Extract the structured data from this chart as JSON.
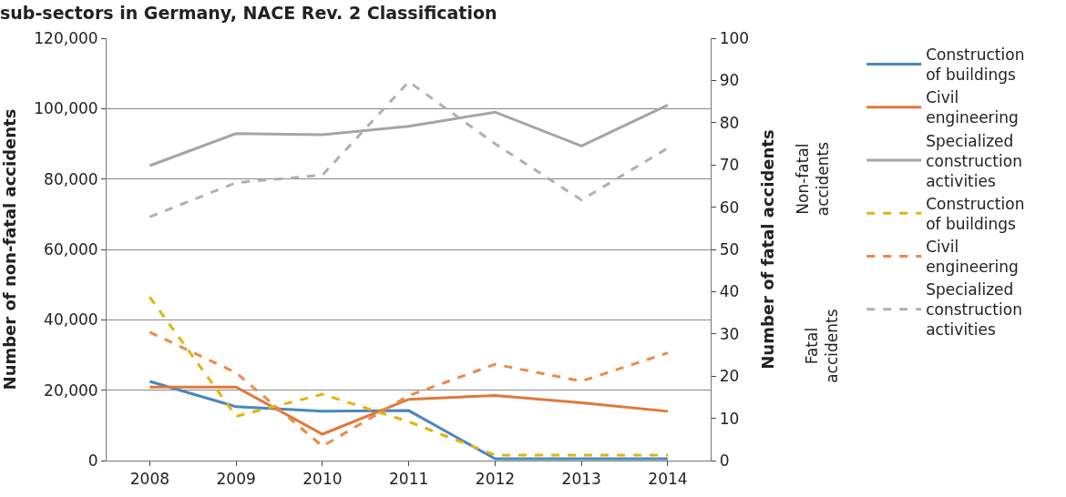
{
  "chart_data": {
    "type": "line",
    "title": "sub-sectors in Germany, NACE Rev. 2 Classification",
    "ylabel": "Number of non-fatal accidents",
    "y2label": "Number of fatal accidents",
    "annotations": [
      "Non-fatal accidents",
      "Fatal accidents"
    ],
    "categories": [
      "2008",
      "2009",
      "2010",
      "2011",
      "2012",
      "2013",
      "2014"
    ],
    "series": [
      {
        "name": "Construction of buildings",
        "color": "#4a86c0",
        "line_style": "solid",
        "values": [
          22500,
          15300,
          14000,
          14200,
          500,
          500,
          500
        ]
      },
      {
        "name": "Civil engineering",
        "color": "#e0783a",
        "line_style": "solid",
        "values": [
          20900,
          20900,
          7500,
          17400,
          18500,
          16400,
          14000
        ]
      },
      {
        "name": "Specialized construction activities",
        "color": "#a5a5a5",
        "line_style": "solid",
        "values": [
          83800,
          92900,
          92600,
          95000,
          99000,
          89400,
          101000
        ]
      },
      {
        "name": "Construction of buildings",
        "color": "#e3b40c",
        "line_style": "dashed",
        "axis": "y2",
        "values": [
          38.7,
          10.5,
          15.7,
          9.2,
          1.3,
          1.3,
          1.3
        ]
      },
      {
        "name": "Civil engineering",
        "color": "#e98a4a",
        "line_style": "dashed",
        "axis": "y2",
        "values": [
          30.4,
          20.8,
          3.4,
          15.4,
          22.8,
          18.8,
          25.5
        ]
      },
      {
        "name": "Specialized construction activities",
        "color": "#b0b0b0",
        "line_style": "dashed",
        "axis": "y2",
        "values": [
          57.7,
          65.8,
          67.6,
          89.7,
          75,
          61.7,
          74
        ]
      }
    ],
    "ylim": [
      0,
      120000
    ],
    "yticks": [
      {
        "value": 0,
        "label": "0"
      },
      {
        "value": 20000,
        "label": "20,000"
      },
      {
        "value": 40000,
        "label": "40,000"
      },
      {
        "value": 60000,
        "label": "60,000"
      },
      {
        "value": 80000,
        "label": "80,000"
      },
      {
        "value": 100000,
        "label": "100,000"
      },
      {
        "value": 120000,
        "label": "120,000"
      }
    ],
    "y2lim": [
      0,
      100
    ],
    "y2ticks": [
      0,
      10,
      20,
      30,
      40,
      50,
      60,
      70,
      80,
      90,
      100
    ],
    "grid": "y",
    "legend": "right",
    "marker": "none"
  }
}
